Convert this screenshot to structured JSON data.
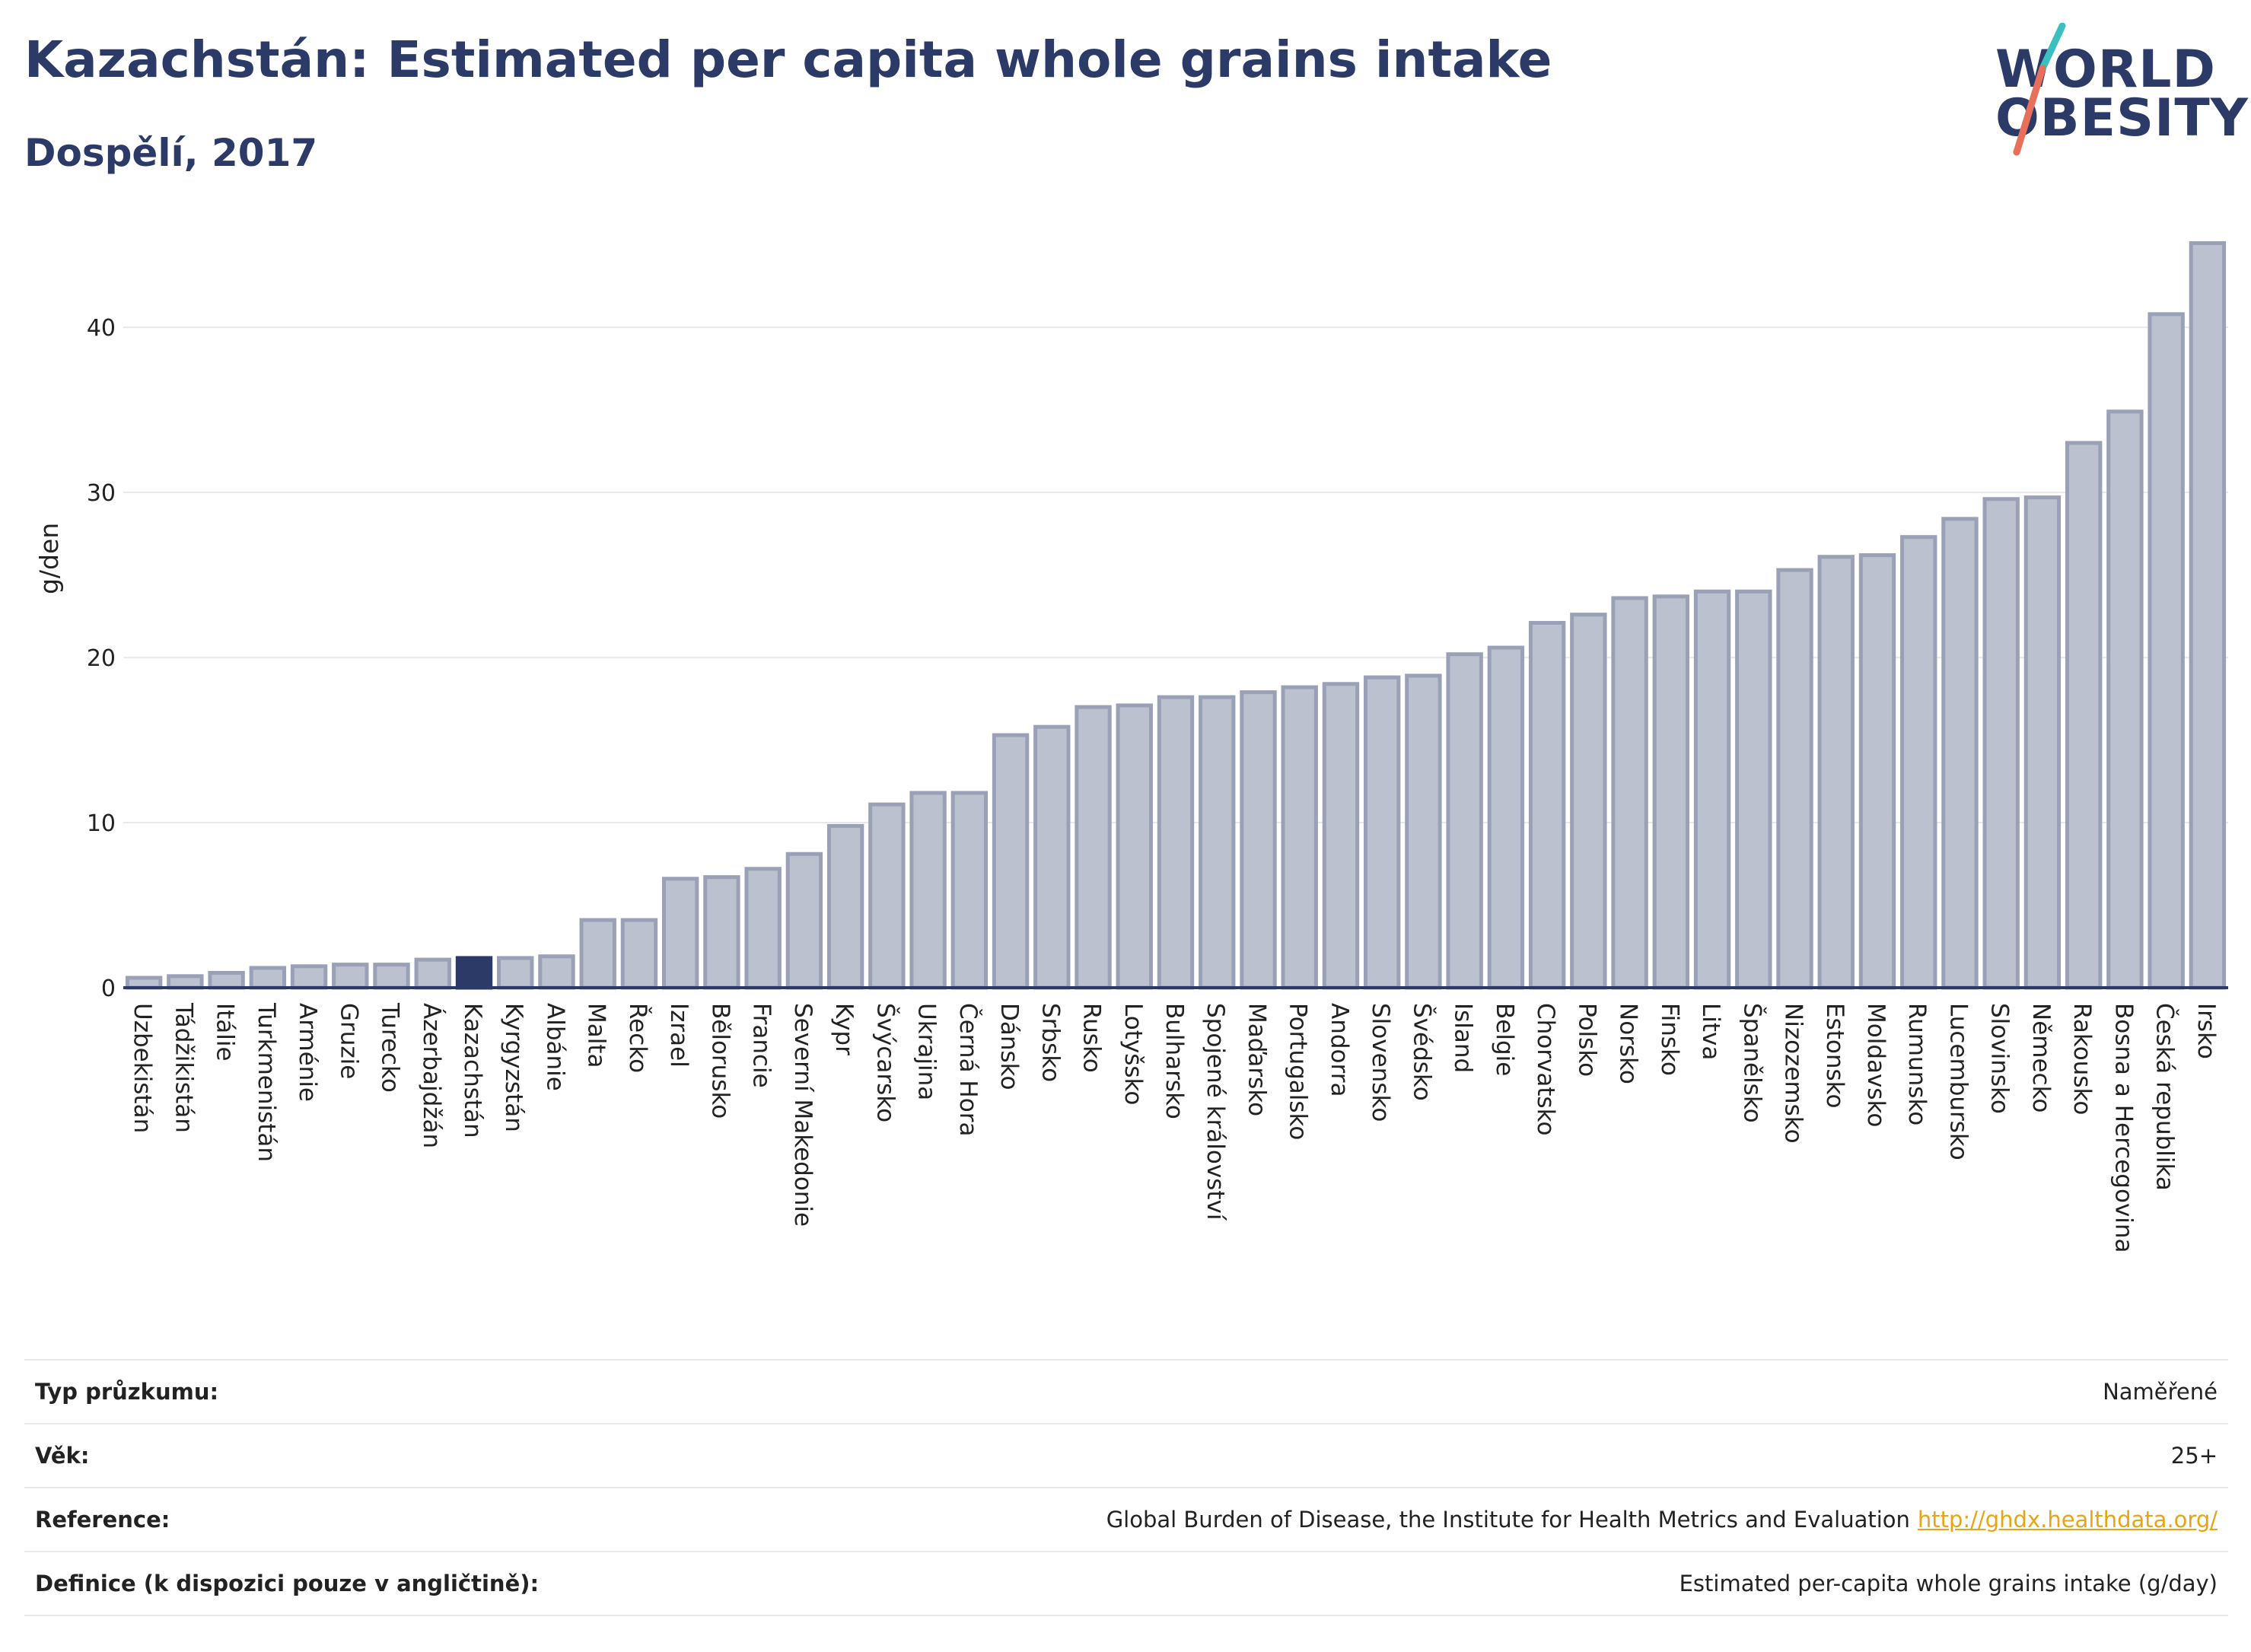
{
  "header": {
    "title": "Kazachstán: Estimated per capita whole grains intake",
    "subtitle": "Dospělí, 2017"
  },
  "logo": {
    "line1": "WORLD",
    "line2": "OBESITY"
  },
  "chart_data": {
    "type": "bar",
    "title": "Kazachstán: Estimated per capita whole grains intake",
    "subtitle": "Dospělí, 2017",
    "ylabel": "g/den",
    "xlabel": "",
    "ylim": [
      0,
      46
    ],
    "yticks": [
      0,
      10,
      20,
      30,
      40
    ],
    "grid": true,
    "highlight": "Kazachstán",
    "colors": {
      "bar": "#bcc1cf",
      "bar_edge": "#9aa0b6",
      "highlight": "#2b3a67"
    },
    "categories": [
      "Uzbekistán",
      "Tádžikistán",
      "Itálie",
      "Turkmenistán",
      "Arménie",
      "Gruzie",
      "Turecko",
      "Ázerbajdžán",
      "Kazachstán",
      "Kyrgyzstán",
      "Albánie",
      "Malta",
      "Řecko",
      "Izrael",
      "Bělorusko",
      "Francie",
      "Severní Makedonie",
      "Kypr",
      "Švýcarsko",
      "Ukrajina",
      "Černá Hora",
      "Dánsko",
      "Srbsko",
      "Rusko",
      "Lotyšsko",
      "Bulharsko",
      "Spojené království",
      "Maďarsko",
      "Portugalsko",
      "Andorra",
      "Slovensko",
      "Švédsko",
      "Island",
      "Belgie",
      "Chorvatsko",
      "Polsko",
      "Norsko",
      "Finsko",
      "Litva",
      "Španělsko",
      "Nizozemsko",
      "Estonsko",
      "Moldavsko",
      "Rumunsko",
      "Lucembursko",
      "Slovinsko",
      "Německo",
      "Rakousko",
      "Bosna a Hercegovina",
      "Česká republika",
      "Irsko"
    ],
    "values": [
      0.6,
      0.7,
      0.9,
      1.2,
      1.3,
      1.4,
      1.4,
      1.7,
      1.8,
      1.8,
      1.9,
      4.1,
      4.1,
      6.6,
      6.7,
      7.2,
      8.1,
      9.8,
      11.1,
      11.8,
      11.8,
      15.3,
      15.8,
      17.0,
      17.1,
      17.6,
      17.6,
      17.9,
      18.2,
      18.4,
      18.8,
      18.9,
      20.2,
      20.6,
      22.1,
      22.6,
      23.6,
      23.7,
      24.0,
      24.0,
      25.3,
      26.1,
      26.2,
      27.3,
      28.4,
      29.6,
      29.7,
      33.0,
      34.9,
      40.8,
      45.1
    ]
  },
  "meta": {
    "rows": [
      {
        "key": "Typ průzkumu:",
        "value": "Naměřené"
      },
      {
        "key": "Věk:",
        "value": "25+"
      },
      {
        "key": "Reference:",
        "value": "Global Burden of Disease, the Institute for Health Metrics and Evaluation",
        "link": "http://ghdx.healthdata.org/"
      },
      {
        "key": "Definice (k dispozici pouze v angličtině):",
        "value": "Estimated per-capita whole grains intake (g/day)"
      }
    ]
  }
}
